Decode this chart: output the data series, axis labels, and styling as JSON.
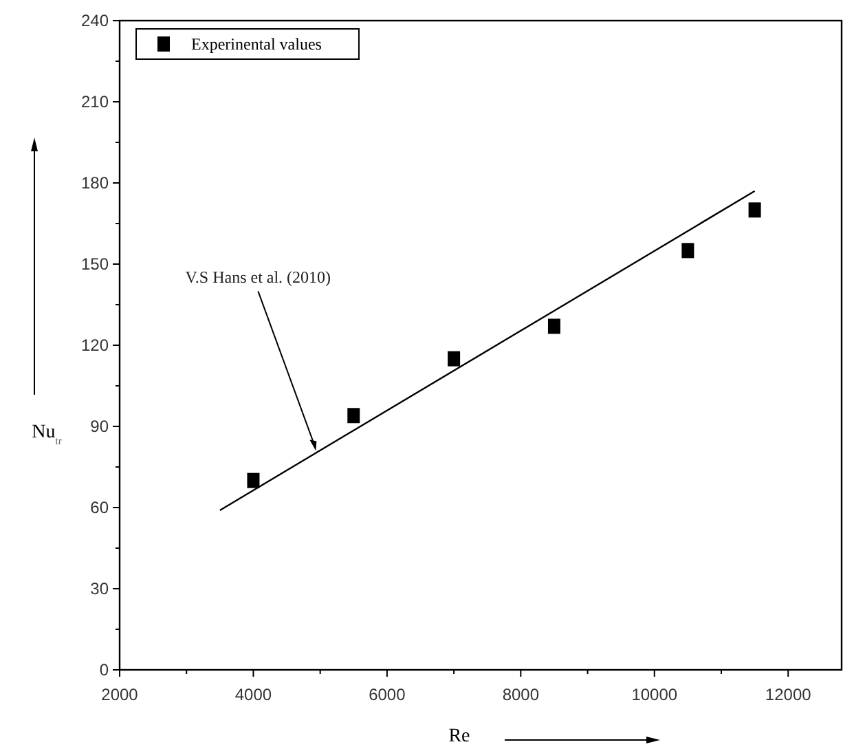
{
  "chart_data": {
    "type": "scatter",
    "xlabel": "Re",
    "ylabel": "Nu$_{tr}$",
    "xlim": [
      2000,
      12800
    ],
    "xticks": [
      2000,
      {
        "value": 3000,
        "label": null
      },
      4000,
      {
        "value": 5000,
        "label": null
      },
      6000,
      {
        "value": 7000,
        "label": null
      },
      8000,
      {
        "value": 9000,
        "label": null
      },
      10000,
      {
        "value": 11000,
        "label": null
      },
      12000
    ],
    "ylim": [
      0,
      240
    ],
    "yticks": [
      0,
      {
        "value": 15,
        "label": null
      },
      30,
      {
        "value": 45,
        "label": null
      },
      60,
      {
        "value": 75,
        "label": null
      },
      90,
      {
        "value": 105,
        "label": null
      },
      120,
      {
        "value": 135,
        "label": null
      },
      150,
      {
        "value": 165,
        "label": null
      },
      180,
      {
        "value": 195,
        "label": null
      },
      210,
      {
        "value": 225,
        "label": null
      },
      240
    ],
    "grid": false,
    "legend": "top left",
    "marker": "square",
    "series": [
      {
        "name": "Experinental values",
        "color": "#000000",
        "x": [
          4000,
          5500,
          7000,
          8500,
          10500,
          11500
        ],
        "values": [
          70,
          94,
          115,
          127,
          155,
          170
        ]
      },
      {
        "type": "line",
        "color": "#000000",
        "line_style": "solid",
        "marker": "none",
        "x": [
          3500,
          11500
        ],
        "values": [
          59,
          177
        ]
      }
    ],
    "annotations": [
      {
        "text": "V.S Hans et al. (2010)",
        "x": 4935,
        "y": 81
      }
    ]
  }
}
